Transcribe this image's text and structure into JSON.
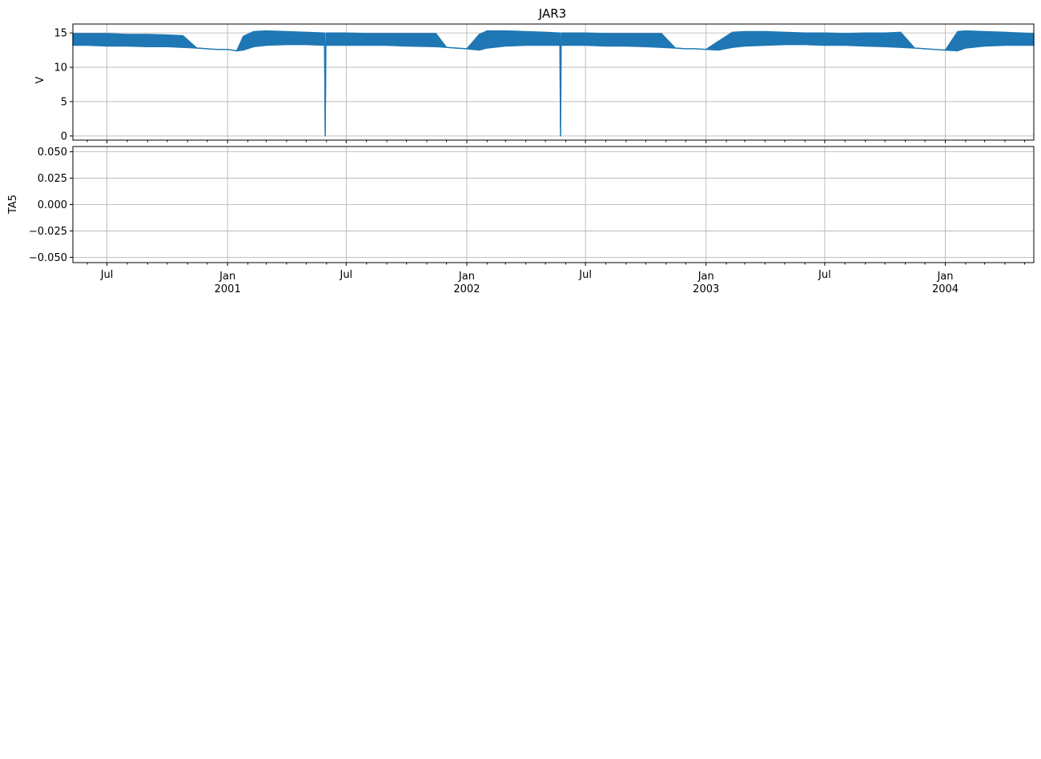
{
  "chart_data": [
    {
      "type": "line",
      "title": "JAR3",
      "ylabel": "V",
      "xlim": [
        "2000-05-10",
        "2004-05-15"
      ],
      "ylim": [
        -0.6,
        16.3
      ],
      "yticks": [
        0,
        5,
        10,
        15
      ],
      "ytick_labels": [
        "0",
        "5",
        "10",
        "15"
      ],
      "grid": true,
      "line_color": "#1f77b4",
      "series": [
        {
          "x": [
            "2000-05-10",
            "2000-06-01",
            "2000-07-01",
            "2000-08-01",
            "2000-09-01",
            "2000-10-01",
            "2000-10-25",
            "2000-11-15",
            "2000-12-01",
            "2000-12-15",
            "2001-01-01",
            "2001-01-15",
            "2001-01-25",
            "2001-02-10",
            "2001-03-01",
            "2001-04-01",
            "2001-05-01",
            "2001-05-29",
            "2001-05-30",
            "2001-05-31",
            "2001-07-01",
            "2001-08-01",
            "2001-09-01",
            "2001-10-01",
            "2001-11-15",
            "2001-12-01",
            "2001-12-15",
            "2002-01-01",
            "2002-01-20",
            "2002-02-01",
            "2002-03-01",
            "2002-04-01",
            "2002-05-01",
            "2002-05-23",
            "2002-05-24",
            "2002-05-25",
            "2002-06-15",
            "2002-07-01",
            "2002-08-01",
            "2002-09-01",
            "2002-10-01",
            "2002-10-25",
            "2002-11-15",
            "2002-12-01",
            "2002-12-15",
            "2003-01-01",
            "2003-01-20",
            "2003-02-10",
            "2003-03-01",
            "2003-04-01",
            "2003-05-01",
            "2003-06-01",
            "2003-07-01",
            "2003-08-01",
            "2003-09-01",
            "2003-10-01",
            "2003-10-25",
            "2003-11-15",
            "2003-12-01",
            "2003-12-15",
            "2004-01-01",
            "2004-01-20",
            "2004-02-01",
            "2004-03-01",
            "2004-04-01",
            "2004-05-15"
          ],
          "lower": [
            13.2,
            13.2,
            13.1,
            13.1,
            13.0,
            13.0,
            12.9,
            12.8,
            12.7,
            12.6,
            12.6,
            12.4,
            12.5,
            13.0,
            13.2,
            13.3,
            13.3,
            13.2,
            0,
            13.2,
            13.2,
            13.2,
            13.2,
            13.1,
            13.0,
            12.9,
            12.8,
            12.7,
            12.5,
            12.8,
            13.1,
            13.2,
            13.2,
            13.2,
            0,
            13.2,
            13.2,
            13.2,
            13.1,
            13.1,
            13.0,
            12.9,
            12.8,
            12.7,
            12.7,
            12.6,
            12.5,
            12.9,
            13.1,
            13.2,
            13.3,
            13.3,
            13.2,
            13.2,
            13.1,
            13.0,
            12.9,
            12.8,
            12.7,
            12.6,
            12.5,
            12.4,
            12.8,
            13.1,
            13.2,
            13.2
          ],
          "upper": [
            14.9,
            14.9,
            14.9,
            14.8,
            14.8,
            14.7,
            14.6,
            12.8,
            12.7,
            12.6,
            12.6,
            12.4,
            14.5,
            15.2,
            15.3,
            15.2,
            15.1,
            15.0,
            0,
            15.0,
            15.0,
            14.9,
            14.9,
            14.9,
            14.9,
            12.9,
            12.8,
            12.7,
            14.8,
            15.3,
            15.3,
            15.2,
            15.1,
            15.0,
            0,
            15.0,
            15.0,
            15.0,
            14.9,
            14.9,
            14.9,
            14.9,
            12.8,
            12.7,
            12.7,
            12.6,
            13.8,
            15.1,
            15.2,
            15.2,
            15.1,
            15.0,
            15.0,
            14.9,
            15.0,
            15.0,
            15.1,
            12.8,
            12.7,
            12.6,
            12.5,
            15.2,
            15.3,
            15.2,
            15.1,
            14.9
          ]
        }
      ]
    },
    {
      "type": "line",
      "title": "",
      "ylabel": "TA5",
      "xlim": [
        "2000-05-10",
        "2004-05-15"
      ],
      "ylim": [
        -0.055,
        0.055
      ],
      "yticks": [
        -0.05,
        -0.025,
        0.0,
        0.025,
        0.05
      ],
      "ytick_labels": [
        "−0.050",
        "−0.025",
        "0.000",
        "0.025",
        "0.050"
      ],
      "grid": true,
      "series": []
    }
  ],
  "x_axis": {
    "major_ticks": [
      {
        "date": "2001-01-01",
        "label1": "Jan",
        "label2": "2001"
      },
      {
        "date": "2002-01-01",
        "label1": "Jan",
        "label2": "2002"
      },
      {
        "date": "2003-01-01",
        "label1": "Jan",
        "label2": "2003"
      },
      {
        "date": "2004-01-01",
        "label1": "Jan",
        "label2": "2004"
      }
    ],
    "mid_ticks": [
      {
        "date": "2000-07-01",
        "label1": "Jul"
      },
      {
        "date": "2001-07-01",
        "label1": "Jul"
      },
      {
        "date": "2002-07-01",
        "label1": "Jul"
      },
      {
        "date": "2003-07-01",
        "label1": "Jul"
      }
    ],
    "minor": "monthly"
  }
}
